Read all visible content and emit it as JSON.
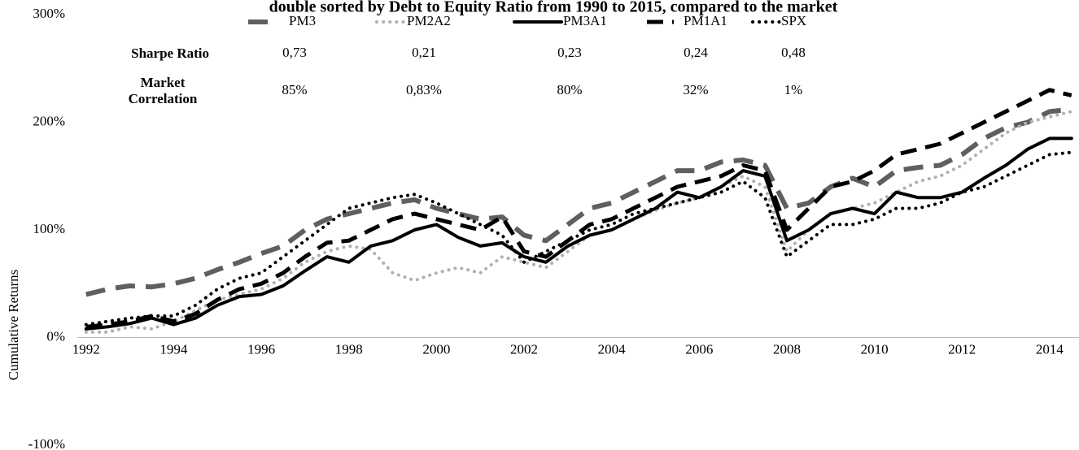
{
  "chart_data": {
    "type": "line",
    "title": "double sorted by Debt to Equity Ratio from 1990 to 2015, compared to the market",
    "y_axis_label": "Cumulative Returns",
    "x": [
      1992,
      1992.5,
      1993,
      1993.5,
      1994,
      1994.5,
      1995,
      1995.5,
      1996,
      1996.5,
      1997,
      1997.5,
      1998,
      1998.5,
      1999,
      1999.5,
      2000,
      2000.5,
      2001,
      2001.5,
      2002,
      2002.5,
      2003,
      2003.5,
      2004,
      2004.5,
      2005,
      2005.5,
      2006,
      2006.5,
      2007,
      2007.5,
      2008,
      2008.5,
      2009,
      2009.5,
      2010,
      2010.5,
      2011,
      2011.5,
      2012,
      2012.5,
      2013,
      2013.5,
      2014,
      2014.5
    ],
    "xlim": [
      1991.8,
      2014.67
    ],
    "xticks": [
      1992,
      1994,
      1996,
      1998,
      2000,
      2002,
      2004,
      2006,
      2008,
      2010,
      2012,
      2014
    ],
    "ylim": [
      -100,
      300
    ],
    "yticks": [
      {
        "value": -100,
        "label": "-100%"
      },
      {
        "value": 0,
        "label": "0%"
      },
      {
        "value": 100,
        "label": "100%"
      },
      {
        "value": 200,
        "label": "200%"
      },
      {
        "value": 300,
        "label": "300%"
      }
    ],
    "series": [
      {
        "name": "PM3",
        "color": "#5f5f5f",
        "style": "dashed",
        "width": 6,
        "values": [
          40,
          45,
          48,
          47,
          50,
          55,
          63,
          70,
          78,
          85,
          100,
          110,
          115,
          120,
          125,
          128,
          120,
          115,
          110,
          112,
          95,
          90,
          105,
          120,
          125,
          135,
          145,
          155,
          155,
          163,
          165,
          160,
          120,
          125,
          140,
          148,
          140,
          155,
          158,
          160,
          170,
          185,
          195,
          200,
          210,
          212
        ]
      },
      {
        "name": "PM2A2",
        "color": "#b0b0b0",
        "style": "dotted",
        "width": 4,
        "values": [
          5,
          5,
          10,
          8,
          15,
          25,
          35,
          40,
          45,
          55,
          70,
          80,
          85,
          82,
          60,
          53,
          60,
          65,
          60,
          75,
          70,
          65,
          80,
          95,
          100,
          110,
          118,
          125,
          130,
          140,
          150,
          140,
          80,
          100,
          115,
          120,
          125,
          135,
          145,
          150,
          160,
          175,
          190,
          200,
          205,
          210
        ]
      },
      {
        "name": "PM3A1",
        "color": "#000000",
        "style": "solid",
        "width": 4,
        "values": [
          8,
          10,
          13,
          18,
          12,
          18,
          30,
          38,
          40,
          48,
          62,
          75,
          70,
          85,
          90,
          100,
          105,
          93,
          85,
          88,
          75,
          70,
          85,
          95,
          100,
          110,
          120,
          135,
          130,
          140,
          155,
          150,
          90,
          100,
          115,
          120,
          115,
          135,
          130,
          130,
          135,
          148,
          160,
          175,
          185,
          185
        ]
      },
      {
        "name": "PM1A1",
        "color": "#000000",
        "style": "dashed",
        "width": 5,
        "values": [
          10,
          12,
          15,
          20,
          15,
          22,
          35,
          45,
          50,
          60,
          75,
          88,
          90,
          100,
          110,
          115,
          110,
          105,
          100,
          112,
          80,
          75,
          90,
          105,
          110,
          120,
          130,
          140,
          145,
          150,
          160,
          155,
          100,
          120,
          140,
          145,
          155,
          170,
          175,
          180,
          190,
          200,
          210,
          220,
          230,
          225
        ]
      },
      {
        "name": "SPX",
        "color": "#000000",
        "style": "dotted",
        "width": 4,
        "values": [
          12,
          15,
          18,
          20,
          20,
          30,
          45,
          55,
          60,
          75,
          90,
          105,
          120,
          125,
          130,
          133,
          125,
          115,
          105,
          95,
          70,
          80,
          90,
          100,
          105,
          115,
          120,
          125,
          130,
          135,
          145,
          130,
          75,
          90,
          105,
          105,
          110,
          120,
          120,
          125,
          135,
          140,
          150,
          160,
          170,
          172
        ]
      }
    ],
    "stats_table": {
      "row_labels": [
        "Sharpe Ratio",
        "Market Correlation"
      ],
      "rows": [
        [
          "0,73",
          "0,21",
          "0,23",
          "0,24",
          "0,48"
        ],
        [
          "85%",
          "0,83%",
          "80%",
          "32%",
          "1%"
        ]
      ]
    }
  }
}
